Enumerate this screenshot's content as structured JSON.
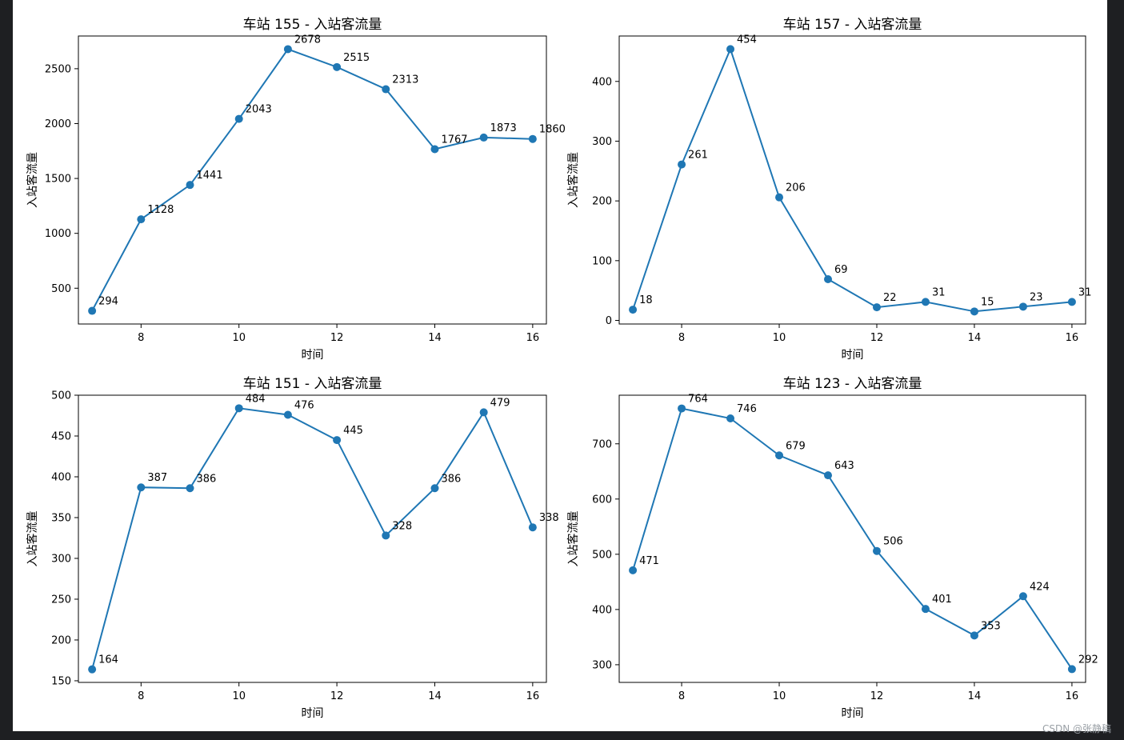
{
  "watermark": "CSDN @张静稿",
  "colors": {
    "series": "#1f77b4",
    "figure_bg": "#ffffff",
    "page_bg": "#1e1f22"
  },
  "chart_data": [
    {
      "type": "line",
      "title": "车站 155 - 入站客流量",
      "xlabel": "时间",
      "ylabel": "入站客流量",
      "x": [
        7,
        8,
        9,
        10,
        11,
        12,
        13,
        14,
        15,
        16
      ],
      "values": [
        294,
        1128,
        1441,
        2043,
        2678,
        2515,
        2313,
        1767,
        1873,
        1860
      ],
      "xticks": [
        8,
        10,
        12,
        14,
        16
      ],
      "yticks": [
        500,
        1000,
        1500,
        2000,
        2500
      ],
      "xlim": [
        6.72,
        16.28
      ],
      "ylim": [
        174,
        2798
      ],
      "grid": false,
      "marker": "circle"
    },
    {
      "type": "line",
      "title": "车站 157 - 入站客流量",
      "xlabel": "时间",
      "ylabel": "入站客流量",
      "x": [
        7,
        8,
        9,
        10,
        11,
        12,
        13,
        14,
        15,
        16
      ],
      "values": [
        18,
        261,
        454,
        206,
        69,
        22,
        31,
        15,
        23,
        31
      ],
      "xticks": [
        8,
        10,
        12,
        14,
        16
      ],
      "yticks": [
        0,
        100,
        200,
        300,
        400
      ],
      "xlim": [
        6.72,
        16.28
      ],
      "ylim": [
        -6,
        476
      ],
      "grid": false,
      "marker": "circle"
    },
    {
      "type": "line",
      "title": "车站 151 - 入站客流量",
      "xlabel": "时间",
      "ylabel": "入站客流量",
      "x": [
        7,
        8,
        9,
        10,
        11,
        12,
        13,
        14,
        15,
        16
      ],
      "values": [
        164,
        387,
        386,
        484,
        476,
        445,
        328,
        386,
        479,
        338
      ],
      "xticks": [
        8,
        10,
        12,
        14,
        16
      ],
      "yticks": [
        150,
        200,
        250,
        300,
        350,
        400,
        450,
        500
      ],
      "xlim": [
        6.72,
        16.28
      ],
      "ylim": [
        148,
        500
      ],
      "grid": false,
      "marker": "circle"
    },
    {
      "type": "line",
      "title": "车站 123 - 入站客流量",
      "xlabel": "时间",
      "ylabel": "入站客流量",
      "x": [
        7,
        8,
        9,
        10,
        11,
        12,
        13,
        14,
        15,
        16
      ],
      "values": [
        471,
        764,
        746,
        679,
        643,
        506,
        401,
        353,
        424,
        292
      ],
      "xticks": [
        8,
        10,
        12,
        14,
        16
      ],
      "yticks": [
        300,
        400,
        500,
        600,
        700
      ],
      "xlim": [
        6.72,
        16.28
      ],
      "ylim": [
        268,
        788
      ],
      "grid": false,
      "marker": "circle"
    }
  ]
}
